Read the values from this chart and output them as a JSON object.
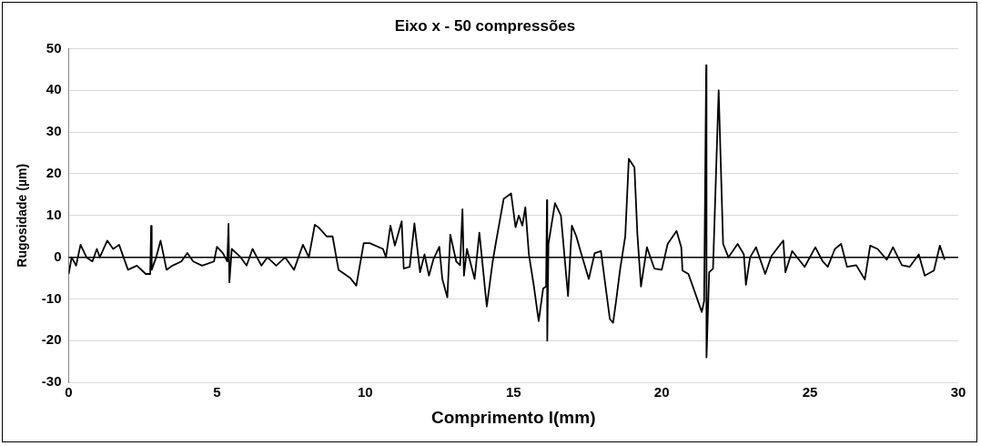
{
  "chart_data": {
    "type": "line",
    "title": "Eixo x - 50 compressões",
    "xlabel": "Comprimento l(mm)",
    "ylabel": "Rugosidade (µm)",
    "xlim": [
      0,
      30
    ],
    "xticks": [
      0,
      5,
      10,
      15,
      20,
      25,
      30
    ],
    "ylim": [
      -30,
      50
    ],
    "yticks": [
      -30,
      -20,
      -10,
      0,
      10,
      20,
      30,
      40,
      50
    ],
    "grid": "y",
    "legend": false,
    "marker": "none",
    "line_style": "solid",
    "ref_lines": [
      {
        "axis": "y",
        "value": 0,
        "color": "#000000"
      }
    ],
    "series": [
      {
        "color": "#000000",
        "x": [
          0,
          0.1,
          0.25,
          0.4,
          0.6,
          0.8,
          0.95,
          1.05,
          1.3,
          1.5,
          1.7,
          1.85,
          2.0,
          2.3,
          2.6,
          2.75,
          2.78,
          2.8,
          2.95,
          3.1,
          3.3,
          3.5,
          3.8,
          4.0,
          4.2,
          4.5,
          4.9,
          5.0,
          5.2,
          5.35,
          5.39,
          5.42,
          5.5,
          5.8,
          6.0,
          6.2,
          6.5,
          6.7,
          7.0,
          7.3,
          7.6,
          7.9,
          8.1,
          8.3,
          8.45,
          8.7,
          8.9,
          9.1,
          9.3,
          9.5,
          9.7,
          9.95,
          10.15,
          10.6,
          10.7,
          10.85,
          11.0,
          11.23,
          11.3,
          11.5,
          11.66,
          11.85,
          12.0,
          12.15,
          12.3,
          12.5,
          12.6,
          12.77,
          12.87,
          13.07,
          13.2,
          13.28,
          13.33,
          13.43,
          13.69,
          13.85,
          14.1,
          14.3,
          14.4,
          14.67,
          14.92,
          15.07,
          15.18,
          15.3,
          15.4,
          15.52,
          15.69,
          15.85,
          16.0,
          16.1,
          16.13,
          16.14,
          16.18,
          16.4,
          16.6,
          16.84,
          16.97,
          17.12,
          17.28,
          17.54,
          17.74,
          17.95,
          18.25,
          18.36,
          18.46,
          18.6,
          18.77,
          18.89,
          19.08,
          19.18,
          19.3,
          19.5,
          19.75,
          20.0,
          20.2,
          20.5,
          20.66,
          20.7,
          20.9,
          21.1,
          21.35,
          21.43,
          21.5,
          21.51,
          21.6,
          21.73,
          21.92,
          22.07,
          22.25,
          22.56,
          22.77,
          22.84,
          22.98,
          23.18,
          23.49,
          23.7,
          24.1,
          24.17,
          24.4,
          24.82,
          25.18,
          25.43,
          25.6,
          25.84,
          26.05,
          26.25,
          26.56,
          26.85,
          27.03,
          27.28,
          27.59,
          27.8,
          28.1,
          28.36,
          28.67,
          28.87,
          29.18,
          29.38,
          29.54
        ],
        "values": [
          -4,
          0,
          -2,
          3,
          0,
          -1,
          2,
          0,
          4,
          2,
          3,
          0,
          -3,
          -2,
          -4,
          -4,
          7.5,
          -3,
          0,
          4,
          -3,
          -2,
          -1,
          1,
          -1,
          -2,
          -1,
          2.5,
          1,
          -1,
          8,
          -6,
          2,
          0,
          -2,
          2,
          -2,
          0,
          -2,
          0,
          -3,
          3,
          0,
          7.8,
          7,
          5,
          5,
          -3,
          -4,
          -5,
          -6.8,
          3.4,
          3.4,
          2,
          0,
          7.6,
          2.8,
          8.6,
          -2.7,
          -2.3,
          8.1,
          -3.6,
          0.7,
          -4.4,
          -0.5,
          2.5,
          -5.2,
          -9.6,
          5.4,
          -1,
          -1.9,
          11.5,
          -4.4,
          2,
          -5.2,
          5.9,
          -11.8,
          -1,
          3.2,
          14,
          15.3,
          7.2,
          10,
          7.6,
          12,
          0.7,
          -7,
          -15.3,
          -7.5,
          -7,
          13.7,
          -20,
          3.2,
          13,
          10,
          -9.3,
          7.6,
          5,
          1,
          -5.2,
          1,
          1.5,
          -14.8,
          -15.7,
          -10.5,
          -2.7,
          5,
          23.6,
          21.5,
          5.4,
          -7,
          2.4,
          -2.7,
          -3,
          3.2,
          6.3,
          2.4,
          -3.2,
          -4,
          -8,
          -13.1,
          -10.5,
          46,
          -24,
          -3.6,
          -2.7,
          40,
          3.2,
          0,
          3.2,
          0.7,
          -6.6,
          0,
          2.4,
          -4,
          0.3,
          4,
          -3.6,
          1.5,
          -2.3,
          2.4,
          -1,
          -2.3,
          2,
          3.2,
          -2.3,
          -1.9,
          -5.3,
          2.8,
          2,
          -0.6,
          2.4,
          -1.9,
          -2.3,
          0.7,
          -4.4,
          -3.2,
          2.8,
          -0.6
        ]
      }
    ]
  }
}
